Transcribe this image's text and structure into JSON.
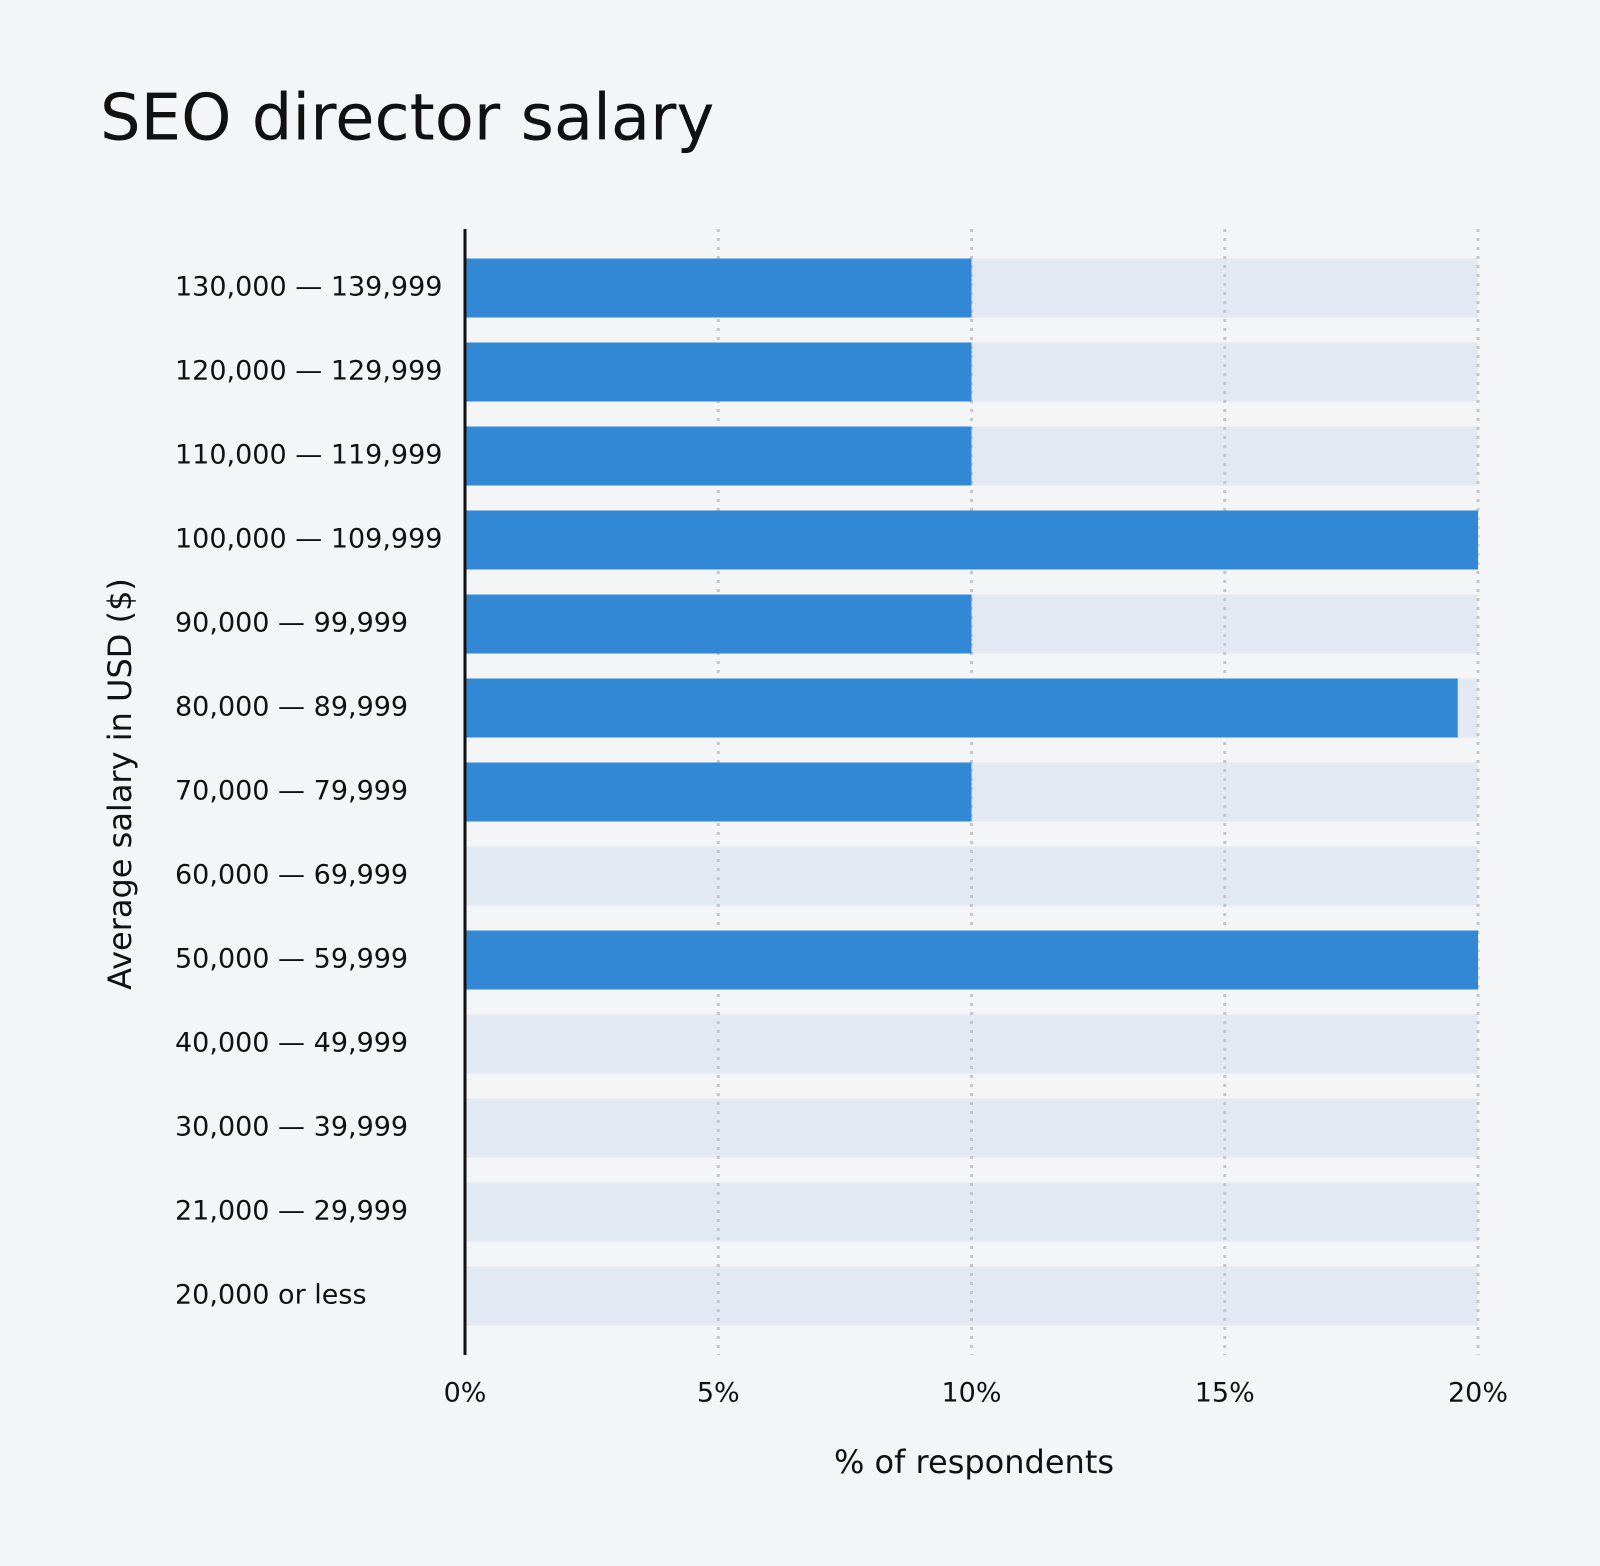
{
  "chart_data": {
    "type": "barh",
    "title": "SEO director salary",
    "x_label": "% of respondents",
    "y_label": "Average salary in USD ($)",
    "categories": [
      "130,000 — 139,999",
      "120,000 — 129,999",
      "110,000 — 119,999",
      "100,000 — 109,999",
      "90,000 — 99,999",
      "80,000 — 89,999",
      "70,000 — 79,999",
      "60,000 — 69,999",
      "50,000 — 59,999",
      "40,000 — 49,999",
      "30,000 — 39,999",
      "21,000 — 29,999",
      "20,000 or less"
    ],
    "values": [
      10,
      10,
      10,
      20,
      10,
      19.6,
      10,
      0,
      20,
      0,
      0,
      0,
      0
    ],
    "color": "#3388d6",
    "xlim": [
      0,
      20
    ],
    "xticks": [
      {
        "value": 0,
        "label": "0%"
      },
      {
        "value": 5,
        "label": "5%"
      },
      {
        "value": 10,
        "label": "10%"
      },
      {
        "value": 15,
        "label": "15%"
      },
      {
        "value": 20,
        "label": "20%"
      }
    ],
    "grid": true
  }
}
